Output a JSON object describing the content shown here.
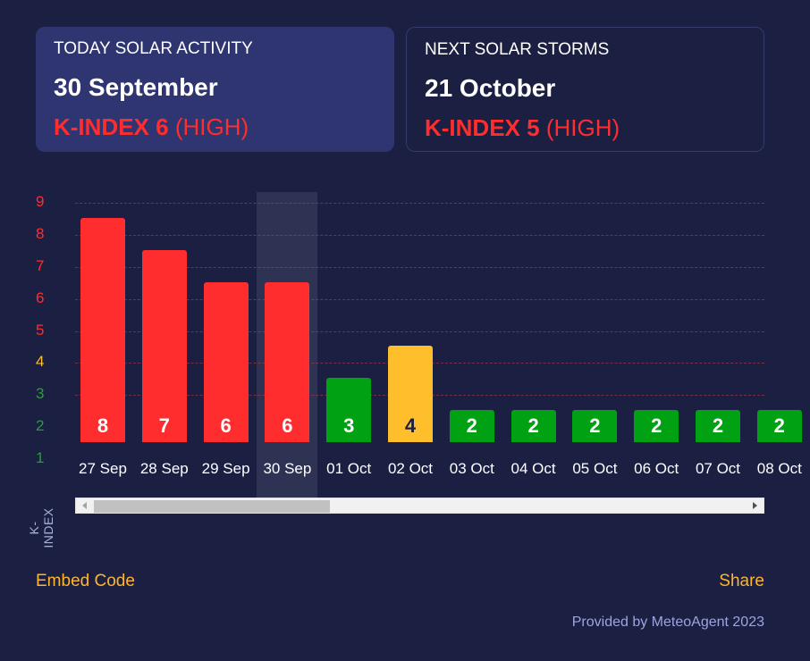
{
  "today": {
    "label": "TODAY SOLAR ACTIVITY",
    "date": "30 September",
    "k_index_label": "K-INDEX 6",
    "level": "(HIGH)"
  },
  "next_storm": {
    "label": "NEXT SOLAR STORMS",
    "date": "21 October",
    "k_index_label": "K-INDEX 5",
    "level": "(HIGH)"
  },
  "colors": {
    "high": "#ff2d2d",
    "moderate": "#ffbf2c",
    "low": "#00a113",
    "low_text": "#1fa52e"
  },
  "chart_data": {
    "type": "bar",
    "ylabel": "K-INDEX",
    "ylim": [
      1,
      9
    ],
    "y_ticks": [
      9,
      8,
      7,
      6,
      5,
      4,
      3,
      2,
      1
    ],
    "categories": [
      "27 Sep",
      "28 Sep",
      "29 Sep",
      "30 Sep",
      "01 Oct",
      "02 Oct",
      "03 Oct",
      "04 Oct",
      "05 Oct",
      "06 Oct",
      "07 Oct",
      "08 Oct"
    ],
    "values": [
      8,
      7,
      6,
      6,
      3,
      4,
      2,
      2,
      2,
      2,
      2,
      2
    ],
    "highlighted": "30 Sep"
  },
  "footer": {
    "embed_label": "Embed Code",
    "share_label": "Share",
    "credit": "Provided by MeteoAgent 2023"
  }
}
